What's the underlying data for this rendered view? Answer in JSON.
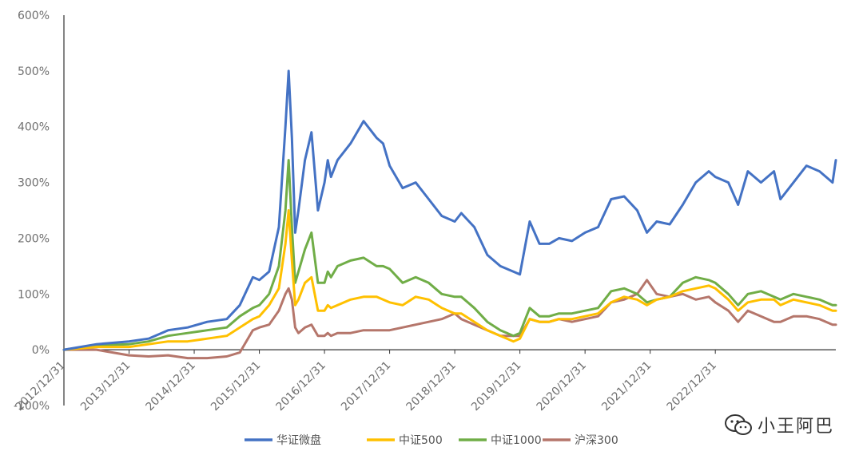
{
  "chart_data": {
    "type": "line",
    "title": "",
    "xlabel": "",
    "ylabel": "",
    "y_ticks": [
      "-100%",
      "0%",
      "100%",
      "200%",
      "300%",
      "400%",
      "500%",
      "600%"
    ],
    "x_ticks": [
      "2012/12/31",
      "2013/12/31",
      "2014/12/31",
      "2015/12/31",
      "2016/12/31",
      "2017/12/31",
      "2018/12/31",
      "2019/12/31",
      "2020/12/31",
      "2021/12/31",
      "2022/12/31"
    ],
    "ylim": [
      -100,
      600
    ],
    "xlim": [
      2012.0,
      2023.85
    ],
    "grid": false,
    "legend_position": "bottom",
    "series": [
      {
        "name": "华证微盘",
        "color": "#4472C4",
        "x": [
          2012.0,
          2012.5,
          2013.0,
          2013.3,
          2013.6,
          2013.9,
          2014.2,
          2014.5,
          2014.7,
          2014.9,
          2015.0,
          2015.15,
          2015.3,
          2015.4,
          2015.45,
          2015.5,
          2015.55,
          2015.6,
          2015.7,
          2015.8,
          2015.9,
          2016.0,
          2016.05,
          2016.1,
          2016.2,
          2016.4,
          2016.6,
          2016.8,
          2016.9,
          2017.0,
          2017.2,
          2017.4,
          2017.6,
          2017.8,
          2018.0,
          2018.1,
          2018.3,
          2018.5,
          2018.7,
          2018.9,
          2019.0,
          2019.15,
          2019.3,
          2019.45,
          2019.6,
          2019.8,
          2020.0,
          2020.2,
          2020.4,
          2020.6,
          2020.8,
          2020.95,
          2021.1,
          2021.3,
          2021.5,
          2021.7,
          2021.9,
          2022.0,
          2022.2,
          2022.35,
          2022.5,
          2022.7,
          2022.9,
          2023.0,
          2023.2,
          2023.4,
          2023.6,
          2023.8,
          2023.85
        ],
        "values": [
          0,
          10,
          15,
          20,
          35,
          40,
          50,
          55,
          80,
          130,
          125,
          140,
          220,
          400,
          500,
          380,
          210,
          250,
          340,
          390,
          250,
          300,
          340,
          310,
          340,
          370,
          410,
          380,
          370,
          330,
          290,
          300,
          270,
          240,
          230,
          245,
          220,
          170,
          150,
          140,
          135,
          230,
          190,
          190,
          200,
          195,
          210,
          220,
          270,
          275,
          250,
          210,
          230,
          225,
          260,
          300,
          320,
          310,
          300,
          260,
          320,
          300,
          320,
          270,
          300,
          330,
          320,
          300,
          340
        ]
      },
      {
        "name": "中证500",
        "color": "#FFC000",
        "x": [
          2012.0,
          2012.5,
          2013.0,
          2013.3,
          2013.6,
          2013.9,
          2014.2,
          2014.5,
          2014.7,
          2014.9,
          2015.0,
          2015.15,
          2015.3,
          2015.4,
          2015.45,
          2015.5,
          2015.55,
          2015.6,
          2015.7,
          2015.8,
          2015.9,
          2016.0,
          2016.05,
          2016.1,
          2016.2,
          2016.4,
          2016.6,
          2016.8,
          2016.9,
          2017.0,
          2017.2,
          2017.4,
          2017.6,
          2017.8,
          2018.0,
          2018.1,
          2018.3,
          2018.5,
          2018.7,
          2018.9,
          2019.0,
          2019.15,
          2019.3,
          2019.45,
          2019.6,
          2019.8,
          2020.0,
          2020.2,
          2020.4,
          2020.6,
          2020.8,
          2020.95,
          2021.1,
          2021.3,
          2021.5,
          2021.7,
          2021.9,
          2022.0,
          2022.2,
          2022.35,
          2022.5,
          2022.7,
          2022.9,
          2023.0,
          2023.2,
          2023.4,
          2023.6,
          2023.8,
          2023.85
        ],
        "values": [
          0,
          5,
          5,
          10,
          15,
          15,
          20,
          25,
          40,
          55,
          60,
          80,
          110,
          190,
          250,
          160,
          80,
          90,
          120,
          130,
          70,
          70,
          80,
          75,
          80,
          90,
          95,
          95,
          90,
          85,
          80,
          95,
          90,
          75,
          65,
          65,
          50,
          35,
          25,
          15,
          20,
          55,
          50,
          50,
          55,
          55,
          60,
          65,
          85,
          95,
          90,
          80,
          90,
          95,
          105,
          110,
          115,
          110,
          90,
          70,
          85,
          90,
          90,
          80,
          90,
          85,
          80,
          70,
          70
        ]
      },
      {
        "name": "中证1000",
        "color": "#70AD47",
        "x": [
          2012.0,
          2012.5,
          2013.0,
          2013.3,
          2013.6,
          2013.9,
          2014.2,
          2014.5,
          2014.7,
          2014.9,
          2015.0,
          2015.15,
          2015.3,
          2015.4,
          2015.45,
          2015.5,
          2015.55,
          2015.6,
          2015.7,
          2015.8,
          2015.9,
          2016.0,
          2016.05,
          2016.1,
          2016.2,
          2016.4,
          2016.6,
          2016.8,
          2016.9,
          2017.0,
          2017.2,
          2017.4,
          2017.6,
          2017.8,
          2018.0,
          2018.1,
          2018.3,
          2018.5,
          2018.7,
          2018.9,
          2019.0,
          2019.15,
          2019.3,
          2019.45,
          2019.6,
          2019.8,
          2020.0,
          2020.2,
          2020.4,
          2020.6,
          2020.8,
          2020.95,
          2021.1,
          2021.3,
          2021.5,
          2021.7,
          2021.9,
          2022.0,
          2022.2,
          2022.35,
          2022.5,
          2022.7,
          2022.9,
          2023.0,
          2023.2,
          2023.4,
          2023.6,
          2023.8,
          2023.85
        ],
        "values": [
          0,
          8,
          10,
          15,
          25,
          30,
          35,
          40,
          60,
          75,
          80,
          100,
          150,
          250,
          340,
          220,
          120,
          140,
          180,
          210,
          120,
          120,
          140,
          130,
          150,
          160,
          165,
          150,
          150,
          145,
          120,
          130,
          120,
          100,
          95,
          95,
          75,
          50,
          35,
          25,
          30,
          75,
          60,
          60,
          65,
          65,
          70,
          75,
          105,
          110,
          100,
          85,
          90,
          95,
          120,
          130,
          125,
          120,
          100,
          80,
          100,
          105,
          95,
          90,
          100,
          95,
          90,
          80,
          80
        ]
      },
      {
        "name": "沪深300",
        "color": "#B5766B",
        "x": [
          2012.0,
          2012.5,
          2013.0,
          2013.3,
          2013.6,
          2013.9,
          2014.2,
          2014.5,
          2014.7,
          2014.9,
          2015.0,
          2015.15,
          2015.3,
          2015.4,
          2015.45,
          2015.5,
          2015.55,
          2015.6,
          2015.7,
          2015.8,
          2015.9,
          2016.0,
          2016.05,
          2016.1,
          2016.2,
          2016.4,
          2016.6,
          2016.8,
          2016.9,
          2017.0,
          2017.2,
          2017.4,
          2017.6,
          2017.8,
          2018.0,
          2018.1,
          2018.3,
          2018.5,
          2018.7,
          2018.9,
          2019.0,
          2019.15,
          2019.3,
          2019.45,
          2019.6,
          2019.8,
          2020.0,
          2020.2,
          2020.4,
          2020.6,
          2020.8,
          2020.95,
          2021.1,
          2021.3,
          2021.5,
          2021.7,
          2021.9,
          2022.0,
          2022.2,
          2022.35,
          2022.5,
          2022.7,
          2022.9,
          2023.0,
          2023.2,
          2023.4,
          2023.6,
          2023.8,
          2023.85
        ],
        "values": [
          0,
          0,
          -10,
          -12,
          -10,
          -15,
          -15,
          -12,
          -5,
          35,
          40,
          45,
          70,
          100,
          110,
          90,
          40,
          30,
          40,
          45,
          25,
          25,
          30,
          25,
          30,
          30,
          35,
          35,
          35,
          35,
          40,
          45,
          50,
          55,
          65,
          55,
          45,
          35,
          25,
          25,
          25,
          55,
          50,
          50,
          55,
          50,
          55,
          60,
          85,
          90,
          100,
          125,
          100,
          95,
          100,
          90,
          95,
          85,
          70,
          50,
          70,
          60,
          50,
          50,
          60,
          60,
          55,
          45,
          45
        ]
      }
    ]
  },
  "watermark": {
    "text": "小王阿巴",
    "icon": "wechat-icon"
  }
}
